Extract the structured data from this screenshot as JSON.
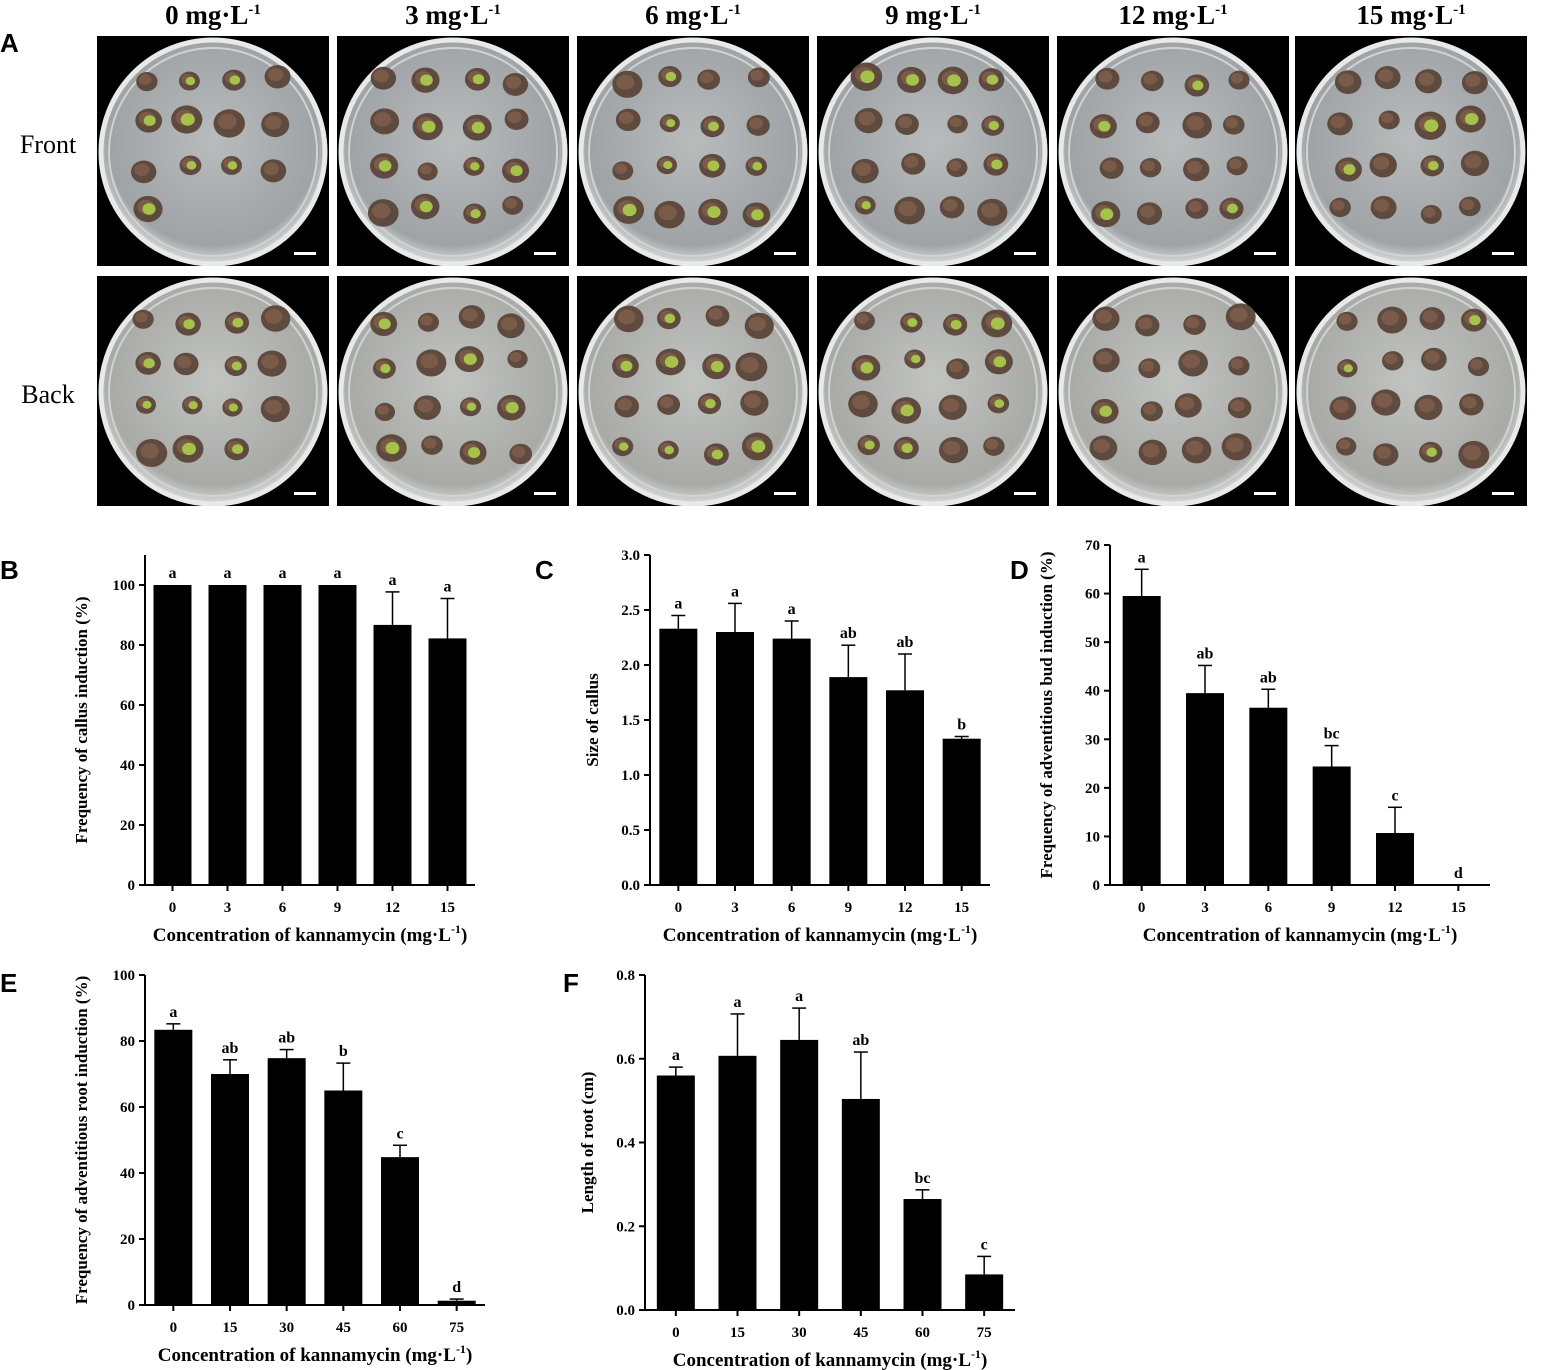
{
  "panel_a": {
    "letter": "A",
    "concentrations": [
      "0 mg·L",
      "3 mg·L",
      "6 mg·L",
      "9 mg·L",
      "12 mg·L",
      "15 mg·L"
    ],
    "concentration_superscript": "-1",
    "rows": [
      "Front",
      "Back"
    ]
  },
  "chart_data": [
    {
      "id": "B",
      "type": "bar",
      "categories": [
        "0",
        "3",
        "6",
        "9",
        "12",
        "15"
      ],
      "values": [
        100,
        100,
        100,
        100,
        86.7,
        82.2
      ],
      "errors": [
        0,
        0,
        0,
        0,
        11,
        13.3
      ],
      "letters": [
        "a",
        "a",
        "a",
        "a",
        "a",
        "a"
      ],
      "xlabel": "Concentration of kannamycin (mg·L",
      "xlabel_sup": "-1",
      "xlabel_end": ")",
      "ylabel": "Frequency of callus induction (%)",
      "ylim": [
        0,
        110
      ],
      "yticks": [
        0,
        20,
        40,
        60,
        80,
        100
      ],
      "ytick_labels": [
        "0",
        "20",
        "40",
        "60",
        "80",
        "100"
      ]
    },
    {
      "id": "C",
      "type": "bar",
      "categories": [
        "0",
        "3",
        "6",
        "9",
        "12",
        "15"
      ],
      "values": [
        2.33,
        2.3,
        2.24,
        1.89,
        1.77,
        1.33
      ],
      "errors": [
        0.12,
        0.26,
        0.16,
        0.29,
        0.33,
        0.02
      ],
      "letters": [
        "a",
        "a",
        "a",
        "ab",
        "ab",
        "b"
      ],
      "xlabel": "Concentration of kannamycin (mg·L",
      "xlabel_sup": "-1",
      "xlabel_end": ")",
      "ylabel": "Size of callus",
      "ylim": [
        0,
        3.0
      ],
      "yticks": [
        0,
        0.5,
        1.0,
        1.5,
        2.0,
        2.5,
        3.0
      ],
      "ytick_labels": [
        "0.0",
        "0.5",
        "1.0",
        "1.5",
        "2.0",
        "2.5",
        "3.0"
      ]
    },
    {
      "id": "D",
      "type": "bar",
      "categories": [
        "0",
        "3",
        "6",
        "9",
        "12",
        "15"
      ],
      "values": [
        59.5,
        39.5,
        36.5,
        24.4,
        10.7,
        0
      ],
      "errors": [
        5.5,
        5.7,
        3.8,
        4.3,
        5.3,
        0
      ],
      "letters": [
        "a",
        "ab",
        "ab",
        "bc",
        "c",
        "d"
      ],
      "xlabel": "Concentration of kannamycin (mg·L",
      "xlabel_sup": "-1",
      "xlabel_end": ")",
      "ylabel": "Frequency of adventitious bud induction (%)",
      "ylim": [
        0,
        70
      ],
      "yticks": [
        0,
        10,
        20,
        30,
        40,
        50,
        60,
        70
      ],
      "ytick_labels": [
        "0",
        "10",
        "20",
        "30",
        "40",
        "50",
        "60",
        "70"
      ]
    },
    {
      "id": "E",
      "type": "bar",
      "categories": [
        "0",
        "15",
        "30",
        "45",
        "60",
        "75"
      ],
      "values": [
        83.4,
        70,
        74.8,
        65,
        44.8,
        1.3
      ],
      "errors": [
        1.8,
        4.3,
        2.6,
        8.3,
        3.6,
        0.5
      ],
      "letters": [
        "a",
        "ab",
        "ab",
        "b",
        "c",
        "d"
      ],
      "xlabel": "Concentration of kannamycin (mg·L",
      "xlabel_sup": "-1",
      "xlabel_end": ")",
      "ylabel": "Frequency of adventitious root induction (%)",
      "ylim": [
        0,
        100
      ],
      "yticks": [
        0,
        20,
        40,
        60,
        80,
        100
      ],
      "ytick_labels": [
        "0",
        "20",
        "40",
        "60",
        "80",
        "100"
      ]
    },
    {
      "id": "F",
      "type": "bar",
      "categories": [
        "0",
        "15",
        "30",
        "45",
        "60",
        "75"
      ],
      "values": [
        0.56,
        0.607,
        0.645,
        0.504,
        0.265,
        0.085
      ],
      "errors": [
        0.02,
        0.1,
        0.076,
        0.112,
        0.022,
        0.043
      ],
      "letters": [
        "a",
        "a",
        "a",
        "ab",
        "bc",
        "c"
      ],
      "xlabel": "Concentration of kannamycin (mg·L",
      "xlabel_sup": "-1",
      "xlabel_end": ")",
      "ylabel": "Length of root (cm)",
      "ylim": [
        0,
        0.8
      ],
      "yticks": [
        0,
        0.2,
        0.4,
        0.6,
        0.8
      ],
      "ytick_labels": [
        "0.0",
        "0.2",
        "0.4",
        "0.6",
        "0.8"
      ]
    }
  ]
}
